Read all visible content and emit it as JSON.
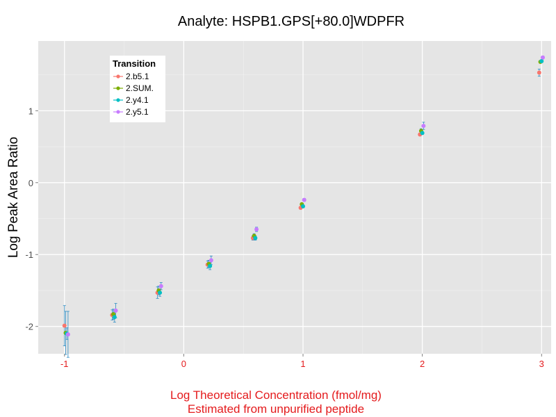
{
  "chart_data": {
    "type": "scatter",
    "title": "Analyte: HSPB1.GPS[+80.0]WDPFR",
    "ylabel": "Log Peak Area Ratio",
    "xlabel_line1": "Log Theoretical Concentration (fmol/mg)",
    "xlabel_line2": "Estimated from unpurified peptide",
    "xlim": [
      -1.22,
      3.08
    ],
    "ylim": [
      -2.38,
      1.97
    ],
    "x_ticks": [
      -1,
      0,
      1,
      2,
      3
    ],
    "x_tick_labels": [
      "-1",
      "0",
      "1",
      "2",
      "3"
    ],
    "y_ticks": [
      -2,
      -1,
      0,
      1
    ],
    "y_tick_labels": [
      "-2",
      "-1",
      "0",
      "1"
    ],
    "error_bar_color": "#2b8cc4",
    "x_text_color": "#e41a1c",
    "panel_background": "#e5e5e5",
    "legend": {
      "title": "Transition",
      "position": "top-left",
      "entries": [
        "2.b5.1",
        "2.SUM.",
        "2.y4.1",
        "2.y5.1"
      ]
    },
    "series": [
      {
        "name": "2.b5.1",
        "color": "#f8766d",
        "points": [
          {
            "x": -1.0,
            "y": -1.99,
            "err": 0.28
          },
          {
            "x": -0.6,
            "y": -1.84,
            "err": 0.07
          },
          {
            "x": -0.22,
            "y": -1.53,
            "err": 0.08
          },
          {
            "x": 0.2,
            "y": -1.14,
            "err": 0.05
          },
          {
            "x": 0.58,
            "y": -0.77,
            "err": 0.03
          },
          {
            "x": 0.98,
            "y": -0.35,
            "err": 0.02
          },
          {
            "x": 1.98,
            "y": 0.67,
            "err": 0.02
          },
          {
            "x": 2.98,
            "y": 1.53,
            "err": 0.05
          }
        ]
      },
      {
        "name": "2.SUM.",
        "color": "#7cae00",
        "points": [
          {
            "x": -0.99,
            "y": -2.09,
            "err": 0.3
          },
          {
            "x": -0.59,
            "y": -1.83,
            "err": 0.07
          },
          {
            "x": -0.21,
            "y": -1.5,
            "err": 0.06
          },
          {
            "x": 0.21,
            "y": -1.13,
            "err": 0.05
          },
          {
            "x": 0.59,
            "y": -0.74,
            "err": 0.03
          },
          {
            "x": 0.99,
            "y": -0.3,
            "err": 0.02
          },
          {
            "x": 1.99,
            "y": 0.72,
            "err": 0.03
          },
          {
            "x": 2.99,
            "y": 1.68,
            "err": 0.02
          }
        ]
      },
      {
        "name": "2.y4.1",
        "color": "#00bfc4",
        "points": [
          {
            "x": -0.98,
            "y": -2.1,
            "err": 0.08
          },
          {
            "x": -0.58,
            "y": -1.87,
            "err": 0.07
          },
          {
            "x": -0.2,
            "y": -1.53,
            "err": 0.05
          },
          {
            "x": 0.22,
            "y": -1.16,
            "err": 0.05
          },
          {
            "x": 0.6,
            "y": -0.77,
            "err": 0.03
          },
          {
            "x": 1.0,
            "y": -0.33,
            "err": 0.02
          },
          {
            "x": 2.0,
            "y": 0.69,
            "err": 0.02
          },
          {
            "x": 3.0,
            "y": 1.69,
            "err": 0.02
          }
        ]
      },
      {
        "name": "2.y5.1",
        "color": "#c77cff",
        "points": [
          {
            "x": -0.97,
            "y": -2.11,
            "err": 0.32
          },
          {
            "x": -0.57,
            "y": -1.78,
            "err": 0.1
          },
          {
            "x": -0.19,
            "y": -1.44,
            "err": 0.05
          },
          {
            "x": 0.23,
            "y": -1.08,
            "err": 0.06
          },
          {
            "x": 0.61,
            "y": -0.65,
            "err": 0.03
          },
          {
            "x": 1.01,
            "y": -0.24,
            "err": 0.02
          },
          {
            "x": 2.01,
            "y": 0.79,
            "err": 0.05
          },
          {
            "x": 3.01,
            "y": 1.74,
            "err": 0.02
          }
        ]
      }
    ]
  }
}
